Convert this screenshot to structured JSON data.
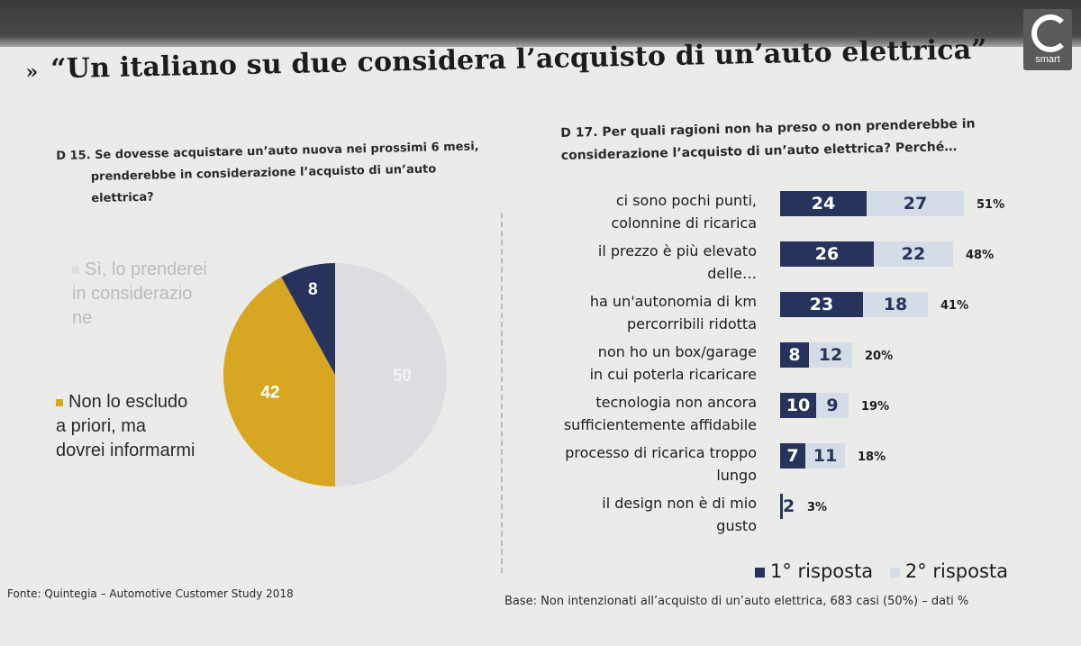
{
  "title": "“Un italiano su due considera l’acquisto di un’auto elettrica”",
  "title_marker": "»",
  "logo_text": "smart",
  "left": {
    "question_line1": "D 15. Se dovesse acquistare un’auto nuova nei prossimi 6 mesi,",
    "question_line2": "prenderebbe in considerazione l’acquisto di un’auto",
    "question_line3": "elettrica?",
    "legend_si": "Sì, lo prenderei in considerazio ne",
    "legend_no": "Non lo escludo a priori, ma dovrei informarmi"
  },
  "right": {
    "question_line1": "D 17. Per quali ragioni non ha preso o non prenderebbe in",
    "question_line2": "considerazione l’acquisto di un’auto elettrica? Perché…"
  },
  "legend": {
    "first": "1° risposta",
    "second": "2° risposta"
  },
  "footer": {
    "fonte": "Fonte: Quintegia – Automotive Customer Study 2018",
    "base": "Base: Non intenzionati all’acquisto di un’auto elettrica, 683 casi (50%) – dati %"
  },
  "colors": {
    "navy": "#27335b",
    "light_blue": "#d4dce8",
    "gold": "#d7a623",
    "pie_grey": "#dcdde0"
  },
  "chart_data": [
    {
      "type": "pie",
      "slices": [
        {
          "label": "Sì, lo prenderei in considerazione",
          "value": 50,
          "color": "#dcdde0"
        },
        {
          "label": "Non lo escludo a priori, ma dovrei informarmi",
          "value": 42,
          "color": "#d7a623"
        },
        {
          "label": "",
          "value": 8,
          "color": "#27335b"
        }
      ]
    },
    {
      "type": "bar",
      "orientation": "horizontal",
      "stacked": true,
      "categories": [
        [
          "ci sono pochi punti,",
          "colonnine di ricarica"
        ],
        [
          "il prezzo è più elevato",
          "delle…"
        ],
        [
          "ha un'autonomia di km",
          "percorribili ridotta"
        ],
        [
          "non ho un box/garage",
          "in cui poterla ricaricare"
        ],
        [
          "tecnologia non ancora",
          "sufficientemente affidabile"
        ],
        [
          "processo di ricarica troppo",
          "lungo"
        ],
        [
          "il design non è di mio",
          "gusto"
        ]
      ],
      "series": [
        {
          "name": "1° risposta",
          "values": [
            24,
            26,
            23,
            8,
            10,
            7,
            2
          ],
          "color": "#27335b"
        },
        {
          "name": "2° risposta",
          "values": [
            27,
            22,
            18,
            12,
            9,
            11,
            null
          ],
          "color": "#d4dce8"
        }
      ],
      "totals": [
        "51%",
        "48%",
        "41%",
        "20%",
        "19%",
        "18%",
        "3%"
      ]
    }
  ]
}
